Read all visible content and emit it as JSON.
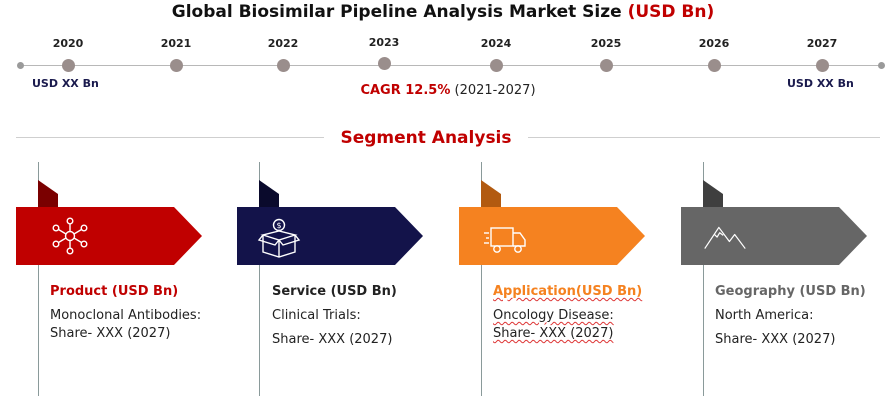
{
  "header": {
    "title_main": "Global Biosimilar Pipeline Analysis Market Size",
    "title_unit": "(USD Bn)"
  },
  "timeline": {
    "years": [
      "2020",
      "2021",
      "2022",
      "2023",
      "2024",
      "2025",
      "2026",
      "2027"
    ],
    "start_value": "USD XX Bn",
    "end_value": "USD XX Bn",
    "cagr_label": "CAGR 12.5%",
    "cagr_period": "(2021-2027)"
  },
  "segment_analysis": {
    "title": "Segment Analysis",
    "cards": [
      {
        "heading": "Product (USD Bn)",
        "line1": "Monoclonal Antibodies:",
        "line2": "Share- XXX (2027)",
        "color": "#c00000",
        "fold_color": "#7a0000",
        "heading_color": "#c00000",
        "icon": "network-icon"
      },
      {
        "heading": "Service (USD Bn)",
        "line1": "Clinical Trials:",
        "line2": "Share- XXX (2027)",
        "color": "#13134a",
        "fold_color": "#0a0a2c",
        "heading_color": "#222222",
        "icon": "money-box-icon"
      },
      {
        "heading": "Application(USD Bn)",
        "line1": "Oncology Disease:",
        "line2": "Share- XXX (2027)",
        "color": "#f58220",
        "fold_color": "#b25a10",
        "heading_color": "#f58220",
        "icon": "delivery-truck-icon"
      },
      {
        "heading": "Geography (USD Bn)",
        "line1": "North America:",
        "line2": "Share- XXX (2027)",
        "color": "#666666",
        "fold_color": "#3f3f3f",
        "heading_color": "#666666",
        "icon": "mountain-icon"
      }
    ]
  }
}
